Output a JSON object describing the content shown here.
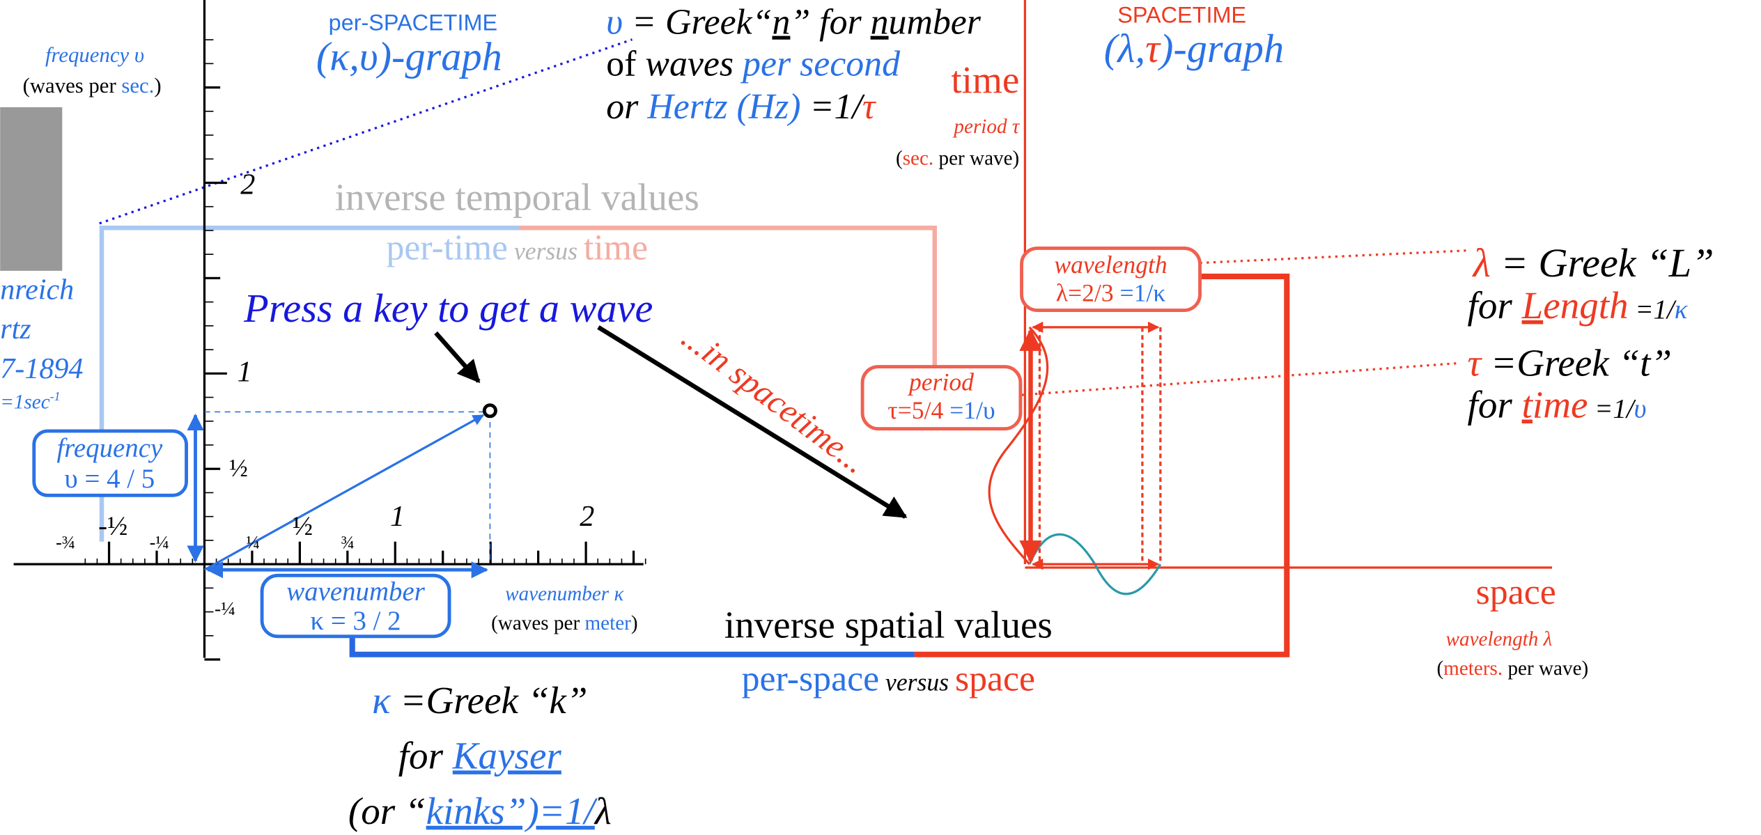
{
  "left_graph": {
    "caption": "per-SPACETIME",
    "title": "(κ,υ)-graph",
    "y_axis": {
      "label": "frequency υ",
      "units": [
        "(waves per ",
        "sec.",
        ")"
      ],
      "ticks": [
        "2",
        "1",
        "½",
        "-¼"
      ]
    },
    "x_axis": {
      "label": "wavenumber κ",
      "units": [
        "(waves per ",
        "meter",
        ")"
      ],
      "ticks": [
        "-¾",
        "-½",
        "-¼",
        "¼",
        "½",
        "¾",
        "1",
        "2"
      ]
    },
    "portrait_caption": [
      "nreich",
      "rtz",
      "7-1894",
      [
        "=1sec",
        "-1"
      ]
    ],
    "frequency_box": [
      "frequency",
      "υ = 4 / 5"
    ],
    "wavenumber_box": [
      "wavenumber",
      "κ = 3 / 2"
    ],
    "prompt": "Press a key to get a wave",
    "arrow_label": "...in spacetime...",
    "upsilon_note": [
      [
        "υ",
        " = Greek“",
        "n",
        "” for ",
        "n",
        "umber"
      ],
      [
        "of ",
        "waves ",
        "per second"
      ],
      [
        "or ",
        "Hertz (Hz)",
        " =1/",
        "τ"
      ]
    ],
    "kappa_note": [
      [
        "κ",
        " =Greek “k”"
      ],
      [
        "for ",
        "K",
        "ayser"
      ],
      [
        "(or “",
        "k",
        "inks”)=1/",
        "λ"
      ]
    ]
  },
  "temporal_banner": {
    "heading": "inverse temporal values",
    "line": [
      "per-time",
      " versus ",
      "time"
    ]
  },
  "spatial_banner": {
    "heading": "inverse spatial values",
    "line": [
      "per-space",
      " versus ",
      "space"
    ]
  },
  "right_graph": {
    "caption": "SPACETIME",
    "title": [
      "(λ,",
      "τ",
      ")-graph"
    ],
    "time_axis": {
      "label": "time",
      "sublabel": "period τ",
      "units": [
        "(",
        "sec.",
        " per wave)"
      ]
    },
    "space_axis": {
      "label": "space",
      "sublabel": "wavelength λ",
      "units": [
        "(",
        "meters.",
        " per wave)"
      ]
    },
    "wavelength_box": [
      "wavelength",
      [
        "λ=2/3 ",
        "=1/κ"
      ]
    ],
    "period_box": [
      "period",
      [
        "τ=5/4 ",
        "=1/υ"
      ]
    ],
    "lambda_note": [
      [
        "λ",
        " = Greek “L”"
      ],
      [
        "for ",
        "L",
        "ength",
        " =1/",
        "κ"
      ]
    ],
    "tau_note": [
      [
        "τ",
        " =Greek “t”"
      ],
      [
        "for ",
        "t",
        "ime",
        " =1/",
        "υ"
      ]
    ]
  }
}
